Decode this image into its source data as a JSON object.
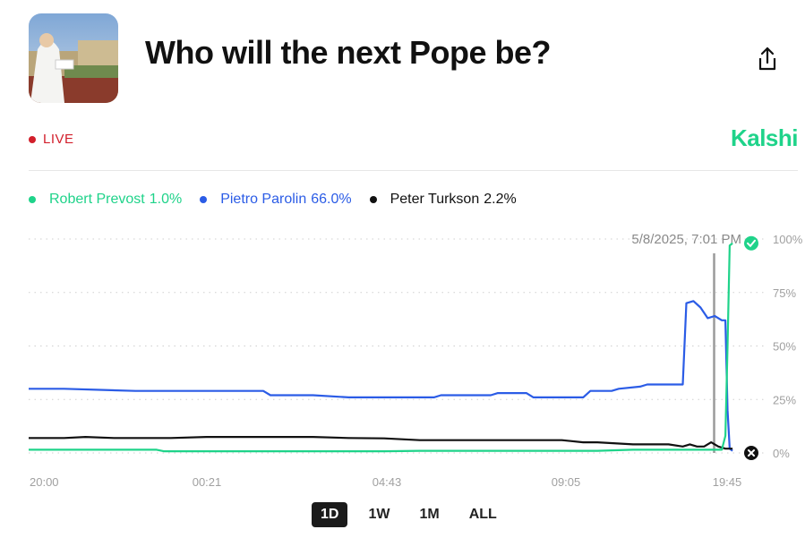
{
  "header": {
    "title": "Who will the next Pope be?",
    "share_icon": "share-icon",
    "thumbnail_icon": "pope-photo"
  },
  "status": {
    "live_label": "LIVE",
    "live_color": "#d21f2b"
  },
  "brand": {
    "name": "Kalshi",
    "color": "#1fd38a"
  },
  "legend": [
    {
      "name": "Robert Prevost",
      "value": "1.0%",
      "color": "#1fd38a"
    },
    {
      "name": "Pietro Parolin",
      "value": "66.0%",
      "color": "#2b5ce6"
    },
    {
      "name": "Peter Turkson",
      "value": "2.2%",
      "color": "#111111"
    }
  ],
  "range_buttons": [
    "1D",
    "1W",
    "1M",
    "ALL"
  ],
  "active_range": "1D",
  "chart_data": {
    "type": "line",
    "x_tick_labels": [
      "20:00",
      "00:21",
      "04:43",
      "09:05",
      "19:45"
    ],
    "y_tick_labels": [
      "100%",
      "75%",
      "50%",
      "25%",
      "0%"
    ],
    "ylim": [
      0,
      100
    ],
    "grid": true,
    "hover_label": "5/8/2025, 7:01 PM",
    "series": [
      {
        "name": "Pietro Parolin",
        "color": "#2b5ce6",
        "points": [
          [
            0,
            30
          ],
          [
            5,
            30
          ],
          [
            10,
            29.5
          ],
          [
            15,
            29
          ],
          [
            20,
            29
          ],
          [
            25,
            29
          ],
          [
            30,
            29
          ],
          [
            33,
            29
          ],
          [
            34,
            27
          ],
          [
            40,
            27
          ],
          [
            45,
            26
          ],
          [
            50,
            26
          ],
          [
            55,
            26
          ],
          [
            57,
            26
          ],
          [
            58,
            27
          ],
          [
            65,
            27
          ],
          [
            66,
            28
          ],
          [
            70,
            28
          ],
          [
            71,
            26
          ],
          [
            75,
            26
          ],
          [
            78,
            26
          ],
          [
            79,
            29
          ],
          [
            82,
            29
          ],
          [
            83,
            30
          ],
          [
            86,
            31
          ],
          [
            87,
            32
          ],
          [
            92,
            32
          ],
          [
            92.5,
            70
          ],
          [
            93.5,
            71
          ],
          [
            94.5,
            68
          ],
          [
            95.5,
            63
          ],
          [
            96.5,
            64
          ],
          [
            97.5,
            62
          ],
          [
            98,
            62
          ],
          [
            98.3,
            20
          ],
          [
            98.6,
            2
          ],
          [
            99,
            1
          ]
        ]
      },
      {
        "name": "Peter Turkson",
        "color": "#111111",
        "points": [
          [
            0,
            7
          ],
          [
            5,
            7
          ],
          [
            8,
            7.5
          ],
          [
            12,
            7
          ],
          [
            15,
            7
          ],
          [
            20,
            7
          ],
          [
            25,
            7.5
          ],
          [
            30,
            7.5
          ],
          [
            35,
            7.5
          ],
          [
            40,
            7.5
          ],
          [
            45,
            7
          ],
          [
            50,
            6.8
          ],
          [
            55,
            6
          ],
          [
            60,
            6
          ],
          [
            65,
            6
          ],
          [
            70,
            6
          ],
          [
            75,
            6
          ],
          [
            78,
            5
          ],
          [
            80,
            5
          ],
          [
            85,
            4
          ],
          [
            90,
            4
          ],
          [
            92,
            3
          ],
          [
            93,
            4
          ],
          [
            94,
            3
          ],
          [
            95,
            3
          ],
          [
            96,
            5
          ],
          [
            97,
            3
          ],
          [
            98,
            2
          ],
          [
            99,
            2
          ]
        ]
      },
      {
        "name": "Robert Prevost",
        "color": "#1fd38a",
        "points": [
          [
            0,
            1.5
          ],
          [
            10,
            1.5
          ],
          [
            18,
            1.5
          ],
          [
            19,
            0.8
          ],
          [
            30,
            0.8
          ],
          [
            40,
            0.8
          ],
          [
            50,
            0.8
          ],
          [
            55,
            1
          ],
          [
            60,
            1
          ],
          [
            70,
            1
          ],
          [
            80,
            1
          ],
          [
            85,
            1.5
          ],
          [
            90,
            1.5
          ],
          [
            95,
            1.5
          ],
          [
            97.5,
            1.5
          ],
          [
            98,
            8
          ],
          [
            98.3,
            50
          ],
          [
            98.6,
            97
          ],
          [
            99,
            98
          ]
        ]
      }
    ]
  }
}
